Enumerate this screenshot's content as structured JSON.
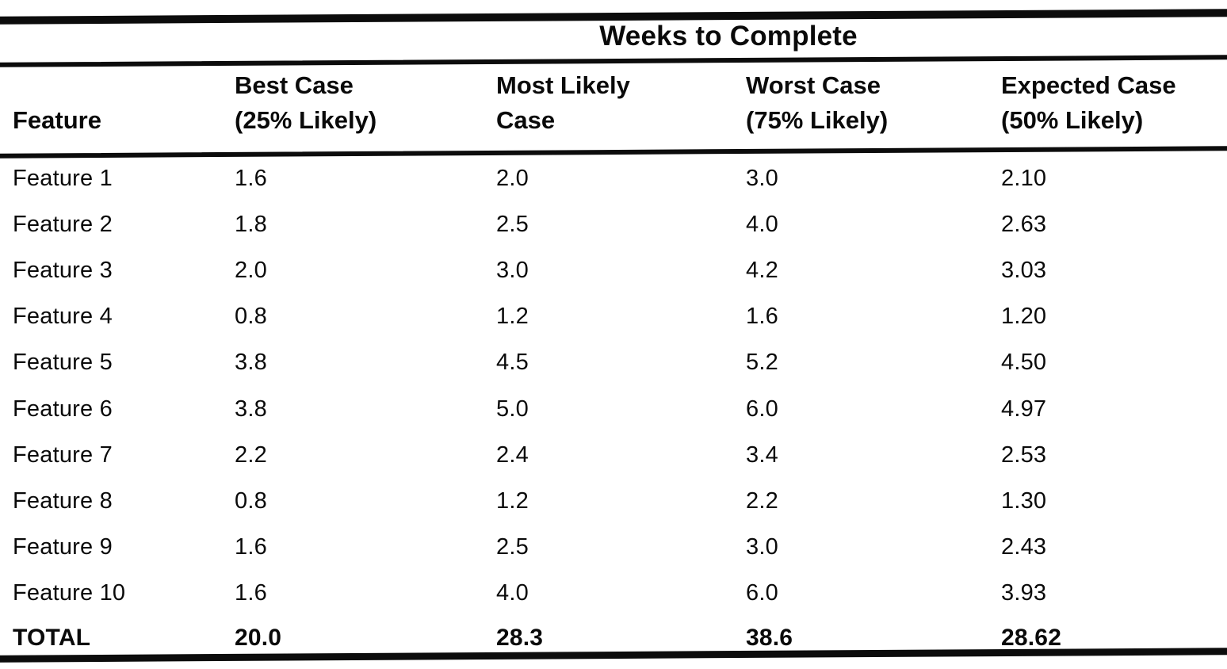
{
  "page": {
    "background_color": "#ffffff",
    "ink_color": "#0c0c0c"
  },
  "table": {
    "title": "Weeks to Complete",
    "columns": {
      "feature": {
        "label": "Feature"
      },
      "best": {
        "label": "Best Case",
        "sub": "(25% Likely)"
      },
      "likely": {
        "label": "Most Likely",
        "sub": "Case"
      },
      "worst": {
        "label": "Worst Case",
        "sub": "(75% Likely)"
      },
      "expected": {
        "label": "Expected Case",
        "sub": "(50% Likely)"
      }
    },
    "rows": [
      {
        "feature": "Feature 1",
        "best": "1.6",
        "likely": "2.0",
        "worst": "3.0",
        "expected": "2.10"
      },
      {
        "feature": "Feature 2",
        "best": "1.8",
        "likely": "2.5",
        "worst": "4.0",
        "expected": "2.63"
      },
      {
        "feature": "Feature 3",
        "best": "2.0",
        "likely": "3.0",
        "worst": "4.2",
        "expected": "3.03"
      },
      {
        "feature": "Feature 4",
        "best": "0.8",
        "likely": "1.2",
        "worst": "1.6",
        "expected": "1.20"
      },
      {
        "feature": "Feature 5",
        "best": "3.8",
        "likely": "4.5",
        "worst": "5.2",
        "expected": "4.50"
      },
      {
        "feature": "Feature 6",
        "best": "3.8",
        "likely": "5.0",
        "worst": "6.0",
        "expected": "4.97"
      },
      {
        "feature": "Feature 7",
        "best": "2.2",
        "likely": "2.4",
        "worst": "3.4",
        "expected": "2.53"
      },
      {
        "feature": "Feature 8",
        "best": "0.8",
        "likely": "1.2",
        "worst": "2.2",
        "expected": "1.30"
      },
      {
        "feature": "Feature 9",
        "best": "1.6",
        "likely": "2.5",
        "worst": "3.0",
        "expected": "2.43"
      },
      {
        "feature": "Feature 10",
        "best": "1.6",
        "likely": "4.0",
        "worst": "6.0",
        "expected": "3.93"
      }
    ],
    "total": {
      "feature": "TOTAL",
      "best": "20.0",
      "likely": "28.3",
      "worst": "38.6",
      "expected": "28.62"
    }
  }
}
